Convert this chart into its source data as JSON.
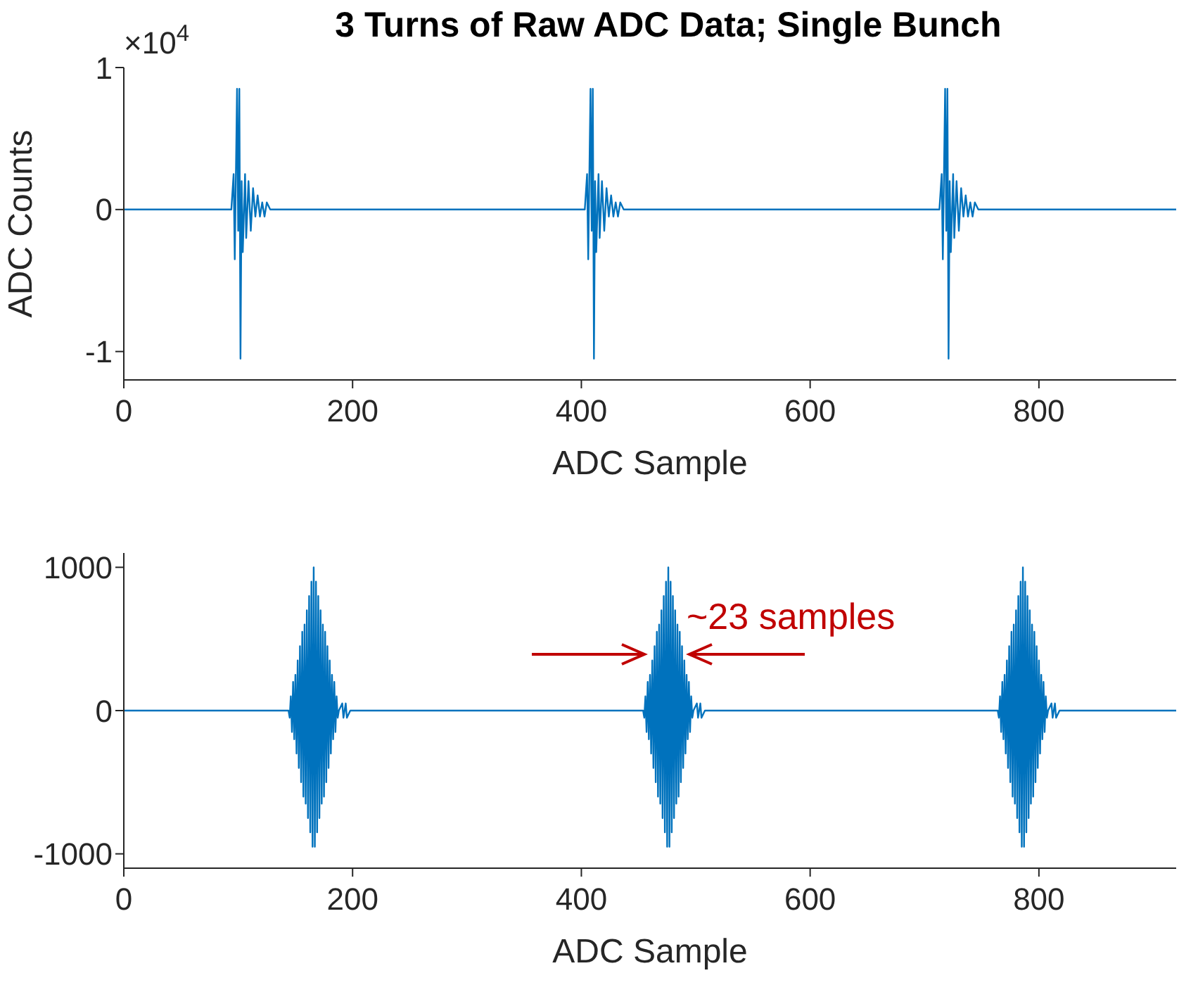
{
  "chart_data": [
    {
      "type": "line",
      "title": "3 Turns of Raw ADC Data; Single Bunch",
      "xlabel": "ADC Sample",
      "ylabel": "ADC Counts",
      "annotations": [
        "×10$^{4}$"
      ],
      "color": "#0072bd",
      "xlim": [
        0,
        920
      ],
      "xticks": [
        0,
        200,
        400,
        600,
        800
      ],
      "ylim": [
        -1.2,
        1
      ],
      "yticks": [
        -1,
        0,
        1
      ],
      "x": [
        0,
        94,
        96,
        97,
        99,
        100,
        101,
        102,
        103,
        104,
        106,
        107,
        109,
        111,
        113,
        115,
        117,
        119,
        121,
        123,
        125,
        128,
        403,
        405,
        406,
        408,
        409,
        410,
        411,
        412,
        413,
        415,
        416,
        418,
        420,
        422,
        424,
        426,
        428,
        430,
        432,
        434,
        437,
        713,
        715,
        716,
        718,
        719,
        720,
        721,
        722,
        723,
        725,
        726,
        728,
        730,
        732,
        734,
        736,
        738,
        740,
        742,
        744,
        747,
        920
      ],
      "values": [
        0,
        0,
        0.25,
        -0.35,
        0.85,
        -0.15,
        0.85,
        -1.05,
        0.2,
        -0.3,
        0.25,
        -0.2,
        0.2,
        -0.15,
        0.15,
        -0.05,
        0.1,
        -0.05,
        0.05,
        -0.05,
        0.05,
        0,
        0,
        0.25,
        -0.35,
        0.85,
        -0.15,
        0.85,
        -1.05,
        0.2,
        -0.3,
        0.25,
        -0.2,
        0.2,
        -0.15,
        0.15,
        -0.05,
        0.1,
        -0.05,
        0.05,
        -0.05,
        0.05,
        0,
        0,
        0.25,
        -0.35,
        0.85,
        -0.15,
        0.85,
        -1.05,
        0.2,
        -0.3,
        0.25,
        -0.2,
        0.2,
        -0.15,
        0.15,
        -0.05,
        0.1,
        -0.05,
        0.05,
        -0.05,
        0.05,
        0,
        0
      ]
    },
    {
      "type": "line",
      "xlabel": "ADC Sample",
      "annotations": [
        "~23 samples"
      ],
      "color": "#0072bd",
      "xlim": [
        0,
        920
      ],
      "xticks": [
        0,
        200,
        400,
        600,
        800
      ],
      "ylim": [
        -1100,
        1100
      ],
      "yticks": [
        -1000,
        0,
        1000
      ],
      "x": [
        0,
        144,
        145,
        146,
        147,
        148,
        149,
        150,
        151,
        152,
        153,
        154,
        155,
        156,
        157,
        158,
        159,
        160,
        161,
        162,
        163,
        164,
        165,
        166,
        167,
        168,
        169,
        170,
        171,
        172,
        173,
        174,
        175,
        176,
        177,
        178,
        179,
        180,
        181,
        182,
        183,
        184,
        185,
        186,
        187,
        188,
        191,
        192,
        194,
        195,
        198,
        454,
        455,
        456,
        457,
        458,
        459,
        460,
        461,
        462,
        463,
        464,
        465,
        466,
        467,
        468,
        469,
        470,
        471,
        472,
        473,
        474,
        475,
        476,
        477,
        478,
        479,
        480,
        481,
        482,
        483,
        484,
        485,
        486,
        487,
        488,
        489,
        490,
        491,
        492,
        493,
        494,
        495,
        496,
        497,
        498,
        501,
        502,
        504,
        505,
        508,
        764,
        765,
        766,
        767,
        768,
        769,
        770,
        771,
        772,
        773,
        774,
        775,
        776,
        777,
        778,
        779,
        780,
        781,
        782,
        783,
        784,
        785,
        786,
        787,
        788,
        789,
        790,
        791,
        792,
        793,
        794,
        795,
        796,
        797,
        798,
        799,
        800,
        801,
        802,
        803,
        804,
        805,
        806,
        807,
        808,
        811,
        812,
        814,
        815,
        818,
        920
      ],
      "values": [
        0,
        0,
        -50,
        100,
        -150,
        200,
        -200,
        250,
        -300,
        350,
        -400,
        450,
        -500,
        550,
        -600,
        600,
        -650,
        700,
        -750,
        800,
        -850,
        900,
        -950,
        1000,
        -950,
        900,
        -850,
        800,
        -750,
        700,
        -650,
        600,
        -600,
        550,
        -500,
        450,
        -400,
        350,
        -300,
        250,
        -200,
        200,
        -150,
        100,
        -50,
        0,
        50,
        -50,
        50,
        -50,
        0,
        0,
        -50,
        100,
        -150,
        200,
        -200,
        250,
        -300,
        350,
        -400,
        450,
        -500,
        550,
        -600,
        600,
        -650,
        700,
        -750,
        800,
        -850,
        900,
        -950,
        1000,
        -950,
        900,
        -850,
        800,
        -750,
        700,
        -650,
        600,
        -600,
        550,
        -500,
        450,
        -400,
        350,
        -300,
        250,
        -200,
        200,
        -150,
        100,
        -50,
        0,
        50,
        -50,
        50,
        -50,
        0,
        0,
        -50,
        100,
        -150,
        200,
        -200,
        250,
        -300,
        350,
        -400,
        450,
        -500,
        550,
        -600,
        600,
        -650,
        700,
        -750,
        800,
        -850,
        900,
        -950,
        1000,
        -950,
        900,
        -850,
        800,
        -750,
        700,
        -650,
        600,
        -600,
        550,
        -500,
        450,
        -400,
        350,
        -300,
        250,
        -200,
        200,
        -150,
        100,
        -50,
        0,
        50,
        -50,
        50,
        -50,
        0,
        0
      ]
    }
  ]
}
